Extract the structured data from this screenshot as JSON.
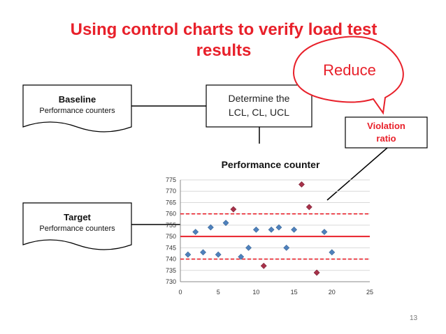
{
  "title": "Using control charts to verify load test results",
  "baseline": {
    "title": "Baseline",
    "subtitle": "Performance counters"
  },
  "target": {
    "title": "Target",
    "subtitle": "Performance counters"
  },
  "determine_box": {
    "line1": "Determine the",
    "line2": "LCL, CL, UCL"
  },
  "violation_box": {
    "line1": "Violation",
    "line2": "ratio"
  },
  "callout": "Reduce",
  "page_number": "13",
  "colors": {
    "accent_red": "#e8202a",
    "point_normal": "#4f81bd",
    "point_violation": "#a8324a"
  },
  "chart_data": {
    "type": "scatter",
    "title": "Performance counter",
    "xlim": [
      0,
      25
    ],
    "ylim": [
      730,
      775
    ],
    "x_ticks": [
      0,
      5,
      10,
      15,
      20,
      25
    ],
    "y_ticks": [
      730,
      735,
      740,
      745,
      750,
      755,
      760,
      765,
      770,
      775
    ],
    "grid": true,
    "control_limits": {
      "LCL": 740,
      "CL": 750,
      "UCL": 760
    },
    "series": [
      {
        "points": [
          [
            1,
            742
          ],
          [
            2,
            752
          ],
          [
            3,
            743
          ],
          [
            4,
            754
          ],
          [
            5,
            742
          ],
          [
            6,
            756
          ],
          [
            8,
            741
          ],
          [
            9,
            745
          ],
          [
            10,
            753
          ],
          [
            12,
            753
          ],
          [
            13,
            754
          ],
          [
            14,
            745
          ],
          [
            15,
            753
          ],
          [
            19,
            752
          ],
          [
            20,
            743
          ]
        ]
      },
      {
        "points": [
          [
            7,
            762
          ],
          [
            11,
            737
          ],
          [
            16,
            773
          ],
          [
            17,
            763
          ],
          [
            18,
            734
          ]
        ]
      }
    ]
  }
}
